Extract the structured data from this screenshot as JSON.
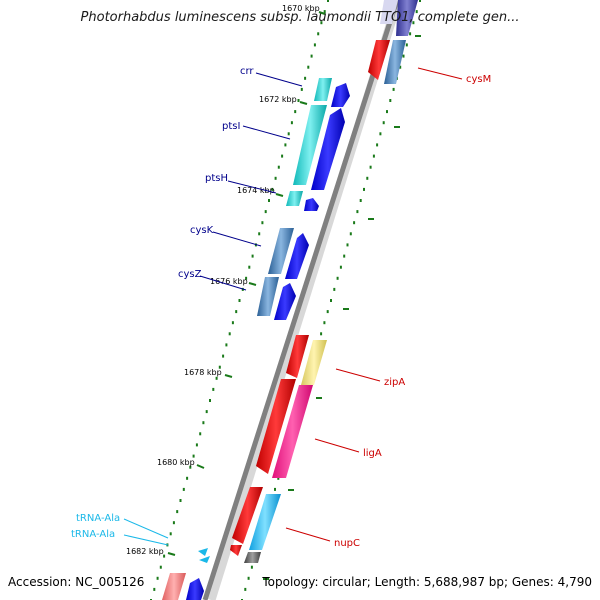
{
  "header": {
    "title": "Photorhabdus luminescens subsp. laumondii TTO1, complete gen..."
  },
  "footer": {
    "accession": "Accession: NC_005126",
    "topology": "Topology: circular; Length: 5,688,987 bp; Genes: 4,790"
  },
  "colors": {
    "backbone": "#808080",
    "tick": "#1a7a1a",
    "forward_label": "#00008b",
    "reverse_label": "#cc0000",
    "trna_label": "#1ab8e8"
  },
  "ticks": [
    {
      "label": "1670 kbp"
    },
    {
      "label": "1672 kbp"
    },
    {
      "label": "1674 kbp"
    },
    {
      "label": "1676 kbp"
    },
    {
      "label": "1678 kbp"
    },
    {
      "label": "1680 kbp"
    },
    {
      "label": "1682 kbp"
    }
  ],
  "labels": {
    "crr": "crr",
    "ptsI": "ptsI",
    "ptsH": "ptsH",
    "cysK": "cysK",
    "cysZ": "cysZ",
    "cysM": "cysM",
    "zipA": "zipA",
    "ligA": "ligA",
    "nupC": "nupC",
    "trna1": "tRNA-Ala",
    "trna2": "tRNA-Ala"
  }
}
